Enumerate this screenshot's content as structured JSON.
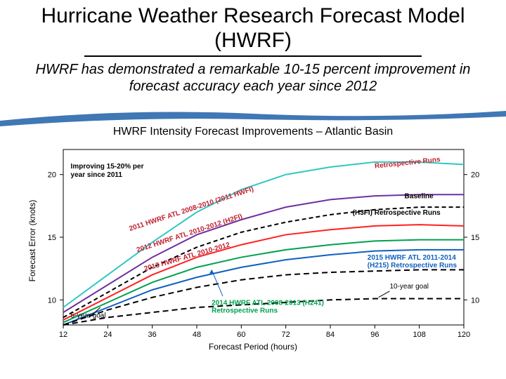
{
  "title_line": "Hurricane Weather Research Forecast Model (HWRF)",
  "subtitle_line": "HWRF has demonstrated a remarkable 10-15 percent improvement in forecast accuracy each year since 2012",
  "chart": {
    "type": "line",
    "title": "HWRF Intensity Forecast Improvements – Atlantic Basin",
    "xlabel": "Forecast Period (hours)",
    "ylabel": "Forecast Error (knots)",
    "xlim": [
      12,
      120
    ],
    "ylim": [
      8,
      22
    ],
    "xticks": [
      12,
      24,
      36,
      48,
      60,
      72,
      84,
      96,
      108,
      120
    ],
    "yticks_left": [
      10,
      15,
      20
    ],
    "yticks_right": [
      10,
      15,
      20
    ],
    "plot_bg": "#ffffff",
    "axis_color": "#000000",
    "axis_width": 1,
    "swoosh_color": "#1f5fa8",
    "annotation_top": "Improving 15-20% per year since 2011",
    "annotation_retro": "Retrospective Runs",
    "annotation_retro_color": "#c02030",
    "annotation_baseline": "Baseline",
    "annotation_h3fi": "(H3FI) Retrospective Runs",
    "goal5_label": "5-year goal",
    "goal10_label": "10-year goal",
    "series": [
      {
        "name": "2011 HWRF ATL 2008-2010 (2011 HWFI)",
        "color": "#30c8c0",
        "width": 2,
        "dash": "none",
        "label_color": "#c02030",
        "data": [
          [
            12,
            9.4
          ],
          [
            24,
            12.0
          ],
          [
            36,
            14.6
          ],
          [
            48,
            17.0
          ],
          [
            60,
            18.8
          ],
          [
            72,
            20.0
          ],
          [
            84,
            20.6
          ],
          [
            96,
            21.0
          ],
          [
            108,
            21.0
          ],
          [
            120,
            20.8
          ]
        ]
      },
      {
        "name": "2012 HWRF ATL 2010-2012 (H2FI)",
        "color": "#7030a0",
        "width": 2,
        "dash": "none",
        "label_color": "#c02030",
        "data": [
          [
            12,
            9.0
          ],
          [
            24,
            11.2
          ],
          [
            36,
            13.4
          ],
          [
            48,
            15.2
          ],
          [
            60,
            16.4
          ],
          [
            72,
            17.4
          ],
          [
            84,
            18.0
          ],
          [
            96,
            18.3
          ],
          [
            108,
            18.4
          ],
          [
            120,
            18.4
          ]
        ]
      },
      {
        "name": "Baseline",
        "color": "#000000",
        "width": 2,
        "dash": "6,4",
        "label_color": "#000000",
        "data": [
          [
            12,
            8.6
          ],
          [
            24,
            10.6
          ],
          [
            36,
            12.6
          ],
          [
            48,
            14.2
          ],
          [
            60,
            15.4
          ],
          [
            72,
            16.2
          ],
          [
            84,
            16.8
          ],
          [
            96,
            17.2
          ],
          [
            108,
            17.4
          ],
          [
            120,
            17.4
          ]
        ]
      },
      {
        "name": "2013 HWRF ATL 2010-2012",
        "color": "#ff2020",
        "width": 2,
        "dash": "none",
        "label_color": "#c02030",
        "data": [
          [
            12,
            8.4
          ],
          [
            24,
            10.2
          ],
          [
            36,
            12.0
          ],
          [
            48,
            13.4
          ],
          [
            60,
            14.4
          ],
          [
            72,
            15.2
          ],
          [
            84,
            15.6
          ],
          [
            96,
            15.9
          ],
          [
            108,
            16.0
          ],
          [
            120,
            15.9
          ]
        ]
      },
      {
        "name": "2014 HWRF ATL 2008-2013 (H241) Retrospective Runs",
        "color": "#00a050",
        "width": 2,
        "dash": "none",
        "label_color": "#00a050",
        "data": [
          [
            12,
            8.2
          ],
          [
            24,
            9.8
          ],
          [
            36,
            11.4
          ],
          [
            48,
            12.6
          ],
          [
            60,
            13.4
          ],
          [
            72,
            14.0
          ],
          [
            84,
            14.4
          ],
          [
            96,
            14.7
          ],
          [
            108,
            14.8
          ],
          [
            120,
            14.8
          ]
        ]
      },
      {
        "name": "2015 HWRF ATL 2011-2014 (H215) Retrospective Runs",
        "color": "#1060c0",
        "width": 2,
        "dash": "none",
        "label_color": "#1060c0",
        "data": [
          [
            12,
            8.0
          ],
          [
            24,
            9.4
          ],
          [
            36,
            10.8
          ],
          [
            48,
            11.8
          ],
          [
            60,
            12.6
          ],
          [
            72,
            13.2
          ],
          [
            84,
            13.6
          ],
          [
            96,
            13.9
          ],
          [
            108,
            14.0
          ],
          [
            120,
            14.0
          ]
        ]
      },
      {
        "name": "5-year goal",
        "color": "#000000",
        "width": 2,
        "dash": "8,5",
        "label_color": "#000000",
        "data": [
          [
            12,
            8.0
          ],
          [
            24,
            9.2
          ],
          [
            36,
            10.2
          ],
          [
            48,
            11.0
          ],
          [
            60,
            11.6
          ],
          [
            72,
            12.0
          ],
          [
            84,
            12.2
          ],
          [
            96,
            12.3
          ],
          [
            108,
            12.4
          ],
          [
            120,
            12.4
          ]
        ]
      },
      {
        "name": "10-year goal",
        "color": "#000000",
        "width": 2,
        "dash": "8,5",
        "label_color": "#000000",
        "data": [
          [
            12,
            8.0
          ],
          [
            24,
            8.6
          ],
          [
            36,
            9.0
          ],
          [
            48,
            9.4
          ],
          [
            60,
            9.6
          ],
          [
            72,
            9.8
          ],
          [
            84,
            10.0
          ],
          [
            96,
            10.1
          ],
          [
            108,
            10.1
          ],
          [
            120,
            10.1
          ]
        ]
      }
    ],
    "series_labels": [
      {
        "text": "2011 HWRF ATL 2008-2010 (2011 HWFI)",
        "x": 30,
        "y": 15.5,
        "rot": -18,
        "color": "#c02030"
      },
      {
        "text": "2012 HWRF ATL 2010-2012 (H2FI)",
        "x": 32,
        "y": 13.8,
        "rot": -18,
        "color": "#c02030"
      },
      {
        "text": "2013 HWRF ATL 2010-2012",
        "x": 34,
        "y": 12.3,
        "rot": -16,
        "color": "#c02030"
      }
    ]
  }
}
